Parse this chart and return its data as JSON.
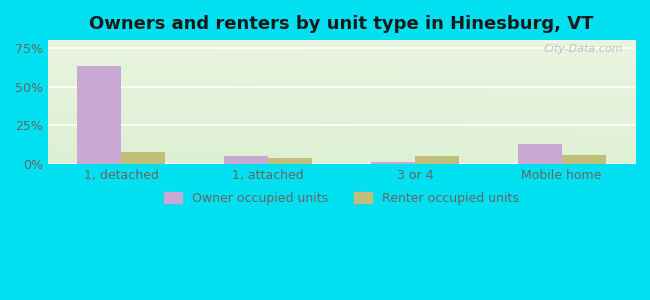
{
  "title": "Owners and renters by unit type in Hinesburg, VT",
  "categories": [
    "1, detached",
    "1, attached",
    "3 or 4",
    "Mobile home"
  ],
  "owner_values": [
    63.0,
    5.0,
    1.5,
    13.0
  ],
  "renter_values": [
    8.0,
    4.0,
    5.0,
    6.0
  ],
  "owner_color": "#c9a8d4",
  "renter_color": "#bfbf7a",
  "yticks": [
    0,
    25,
    50,
    75
  ],
  "ytick_labels": [
    "0%",
    "25%",
    "50%",
    "75%"
  ],
  "ylim": [
    0,
    80
  ],
  "bar_width": 0.3,
  "legend_owner": "Owner occupied units",
  "legend_renter": "Renter occupied units",
  "title_fontsize": 13,
  "tick_fontsize": 9,
  "legend_fontsize": 9,
  "bg_top_left": "#d4edd4",
  "bg_top_right": "#f0f0e8",
  "bg_bottom_left": "#c8e8c8",
  "bg_bottom_right": "#e8e8d8",
  "outer_bg": "#00e0f0",
  "watermark": "City-Data.com",
  "grid_color": "#ffffff",
  "axis_label_color": "#666666"
}
